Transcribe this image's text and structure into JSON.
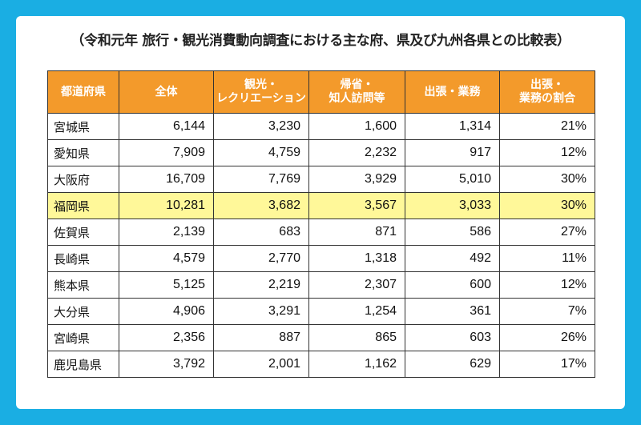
{
  "title": "（令和元年 旅行・観光消費動向調査における主な府、県及び九州各県との比較表）",
  "colors": {
    "background": "#1aaee3",
    "header": "#f39a2b",
    "highlight": "#fff899"
  },
  "table": {
    "headers": [
      [
        "都道府県"
      ],
      [
        "全体"
      ],
      [
        "観光・",
        "レクリエーション"
      ],
      [
        "帰省・",
        "知人訪問等"
      ],
      [
        "出張・業務"
      ],
      [
        "出張・",
        "業務の割合"
      ]
    ],
    "rows": [
      {
        "pref": "宮城県",
        "total": "6,144",
        "tourism": "3,230",
        "visit": "1,600",
        "business": "1,314",
        "ratio": "21%"
      },
      {
        "pref": "愛知県",
        "total": "7,909",
        "tourism": "4,759",
        "visit": "2,232",
        "business": "917",
        "ratio": "12%"
      },
      {
        "pref": "大阪府",
        "total": "16,709",
        "tourism": "7,769",
        "visit": "3,929",
        "business": "5,010",
        "ratio": "30%"
      },
      {
        "pref": "福岡県",
        "total": "10,281",
        "tourism": "3,682",
        "visit": "3,567",
        "business": "3,033",
        "ratio": "30%",
        "highlight": true
      },
      {
        "pref": "佐賀県",
        "total": "2,139",
        "tourism": "683",
        "visit": "871",
        "business": "586",
        "ratio": "27%"
      },
      {
        "pref": "長崎県",
        "total": "4,579",
        "tourism": "2,770",
        "visit": "1,318",
        "business": "492",
        "ratio": "11%"
      },
      {
        "pref": "熊本県",
        "total": "5,125",
        "tourism": "2,219",
        "visit": "2,307",
        "business": "600",
        "ratio": "12%"
      },
      {
        "pref": "大分県",
        "total": "4,906",
        "tourism": "3,291",
        "visit": "1,254",
        "business": "361",
        "ratio": "7%"
      },
      {
        "pref": "宮崎県",
        "total": "2,356",
        "tourism": "887",
        "visit": "865",
        "business": "603",
        "ratio": "26%"
      },
      {
        "pref": "鹿児島県",
        "total": "3,792",
        "tourism": "2,001",
        "visit": "1,162",
        "business": "629",
        "ratio": "17%"
      }
    ]
  }
}
